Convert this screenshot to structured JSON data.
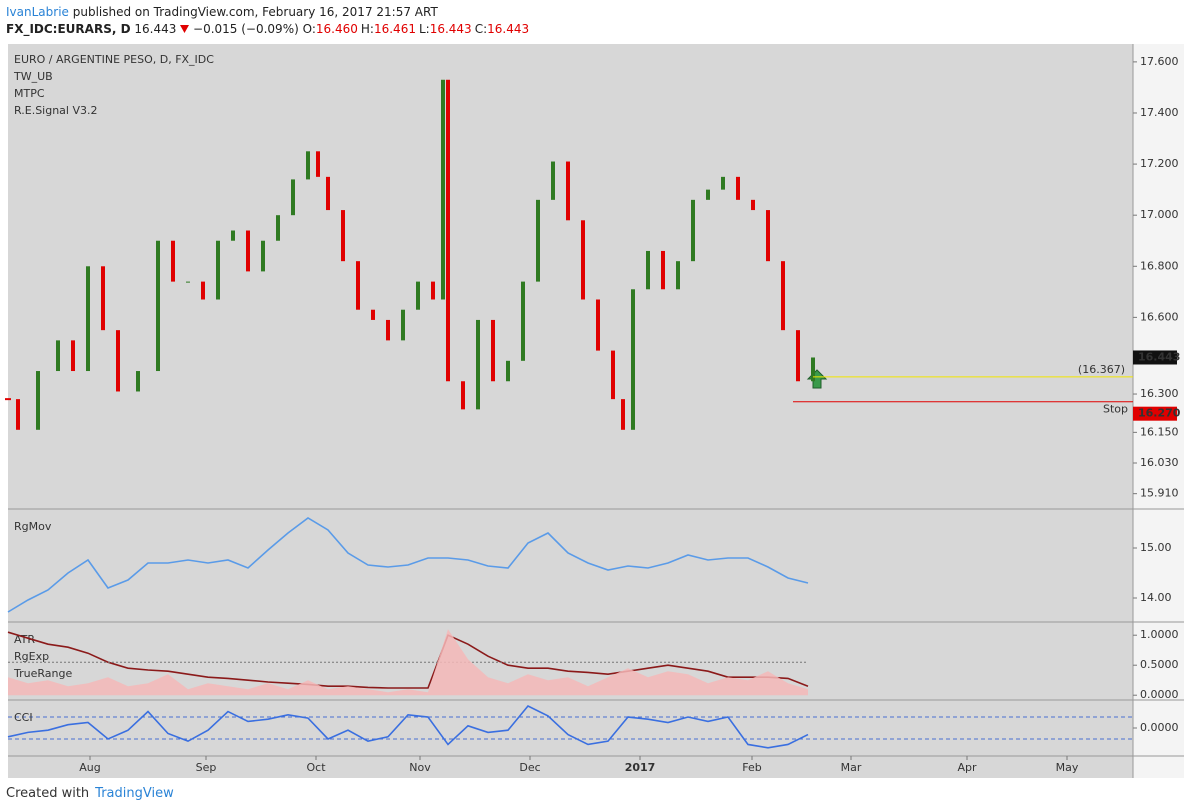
{
  "header": {
    "author": "IvanLabrie",
    "byline": "published on TradingView.com, February 16, 2017 21:57 ART"
  },
  "quote": {
    "symbol": "FX_IDC:EURARS, D",
    "price": "16.443",
    "change": "−0.015 (−0.09%)",
    "ohlc": [
      {
        "key": "O:",
        "value": "16.460"
      },
      {
        "key": "H:",
        "value": "16.461"
      },
      {
        "key": "L:",
        "value": "16.443"
      },
      {
        "key": "C:",
        "value": "16.443"
      }
    ]
  },
  "footer": {
    "created": "Created with",
    "brand": "TradingView"
  },
  "chart_data": [
    {
      "type": "candlestick",
      "title": "EURO / ARGENTINE PESO, D, FX_IDC",
      "indicators": [
        "TW_UB",
        "MTPC",
        "R.E.Signal V3.2"
      ],
      "x": [
        0,
        2,
        6,
        10,
        13,
        16,
        19,
        22,
        26,
        30,
        33,
        36,
        39,
        42,
        45,
        48,
        51,
        54,
        57,
        60,
        62,
        64,
        67,
        70,
        73,
        76,
        79,
        82,
        85,
        87,
        88,
        91,
        94,
        97,
        100,
        103,
        106,
        109,
        112,
        115,
        118,
        121,
        123,
        125,
        128,
        131,
        134,
        137,
        140,
        143,
        146,
        149,
        152,
        155,
        158,
        161
      ],
      "values": [
        16.28,
        16.16,
        16.39,
        16.51,
        16.39,
        16.8,
        16.55,
        16.31,
        16.39,
        16.9,
        16.74,
        16.74,
        16.67,
        16.9,
        16.94,
        16.78,
        16.9,
        17.0,
        17.14,
        17.25,
        17.15,
        17.02,
        16.82,
        16.63,
        16.59,
        16.51,
        16.63,
        16.74,
        16.67,
        17.53,
        16.35,
        16.24,
        16.59,
        16.35,
        16.43,
        16.74,
        17.06,
        17.21,
        16.98,
        16.67,
        16.47,
        16.28,
        16.16,
        16.71,
        16.86,
        16.71,
        16.82,
        17.06,
        17.1,
        17.15,
        17.06,
        17.02,
        16.82,
        16.55,
        16.35,
        16.443
      ],
      "up_color": "#2f7a22",
      "down_color": "#e00000",
      "xlim": [
        0,
        225
      ],
      "ylim": [
        15.85,
        17.67
      ],
      "yticks": [
        {
          "value": 17.6,
          "label": "17.600"
        },
        {
          "value": 17.4,
          "label": "17.400"
        },
        {
          "value": 17.2,
          "label": "17.200"
        },
        {
          "value": 17.0,
          "label": "17.000"
        },
        {
          "value": 16.8,
          "label": "16.800"
        },
        {
          "value": 16.6,
          "label": "16.600"
        },
        {
          "value": 16.3,
          "label": "16.300"
        },
        {
          "value": 16.15,
          "label": "16.150"
        },
        {
          "value": 16.03,
          "label": "16.030"
        },
        {
          "value": 15.91,
          "label": "15.910"
        }
      ],
      "last_price": {
        "value": 16.443,
        "label": "16.443"
      },
      "target": {
        "value": 16.367,
        "label": "(16.367)"
      },
      "stop": {
        "name": "Stop",
        "value": 16.27,
        "label": "16.270"
      }
    },
    {
      "type": "line",
      "xlim": [
        0,
        225
      ],
      "ylim": [
        13.52,
        15.78
      ],
      "x": [
        0,
        4,
        8,
        12,
        16,
        20,
        24,
        28,
        32,
        36,
        40,
        44,
        48,
        52,
        56,
        60,
        64,
        68,
        72,
        76,
        80,
        84,
        88,
        92,
        96,
        100,
        104,
        108,
        112,
        116,
        120,
        124,
        128,
        132,
        136,
        140,
        144,
        148,
        152,
        156,
        160
      ],
      "series": [
        {
          "name": "RgMov",
          "color": "#5a9be8",
          "values": [
            13.72,
            13.96,
            14.16,
            14.5,
            14.76,
            14.2,
            14.36,
            14.7,
            14.7,
            14.76,
            14.7,
            14.76,
            14.6,
            14.96,
            15.3,
            15.6,
            15.36,
            14.9,
            14.66,
            14.62,
            14.66,
            14.8,
            14.8,
            14.76,
            14.64,
            14.6,
            15.1,
            15.3,
            14.9,
            14.7,
            14.56,
            14.64,
            14.6,
            14.7,
            14.86,
            14.76,
            14.8,
            14.8,
            14.62,
            14.4,
            14.3
          ]
        }
      ],
      "yticks": [
        {
          "value": 15,
          "label": "15.00"
        },
        {
          "value": 14,
          "label": "14.00"
        }
      ]
    },
    {
      "type": "line",
      "xlim": [
        0,
        225
      ],
      "ylim": [
        -0.08,
        1.22
      ],
      "x": [
        0,
        4,
        8,
        12,
        16,
        20,
        24,
        28,
        32,
        36,
        40,
        44,
        48,
        52,
        56,
        60,
        64,
        68,
        72,
        76,
        80,
        84,
        88,
        92,
        96,
        100,
        104,
        108,
        112,
        116,
        120,
        124,
        128,
        132,
        136,
        140,
        144,
        148,
        152,
        156,
        160
      ],
      "series": [
        {
          "name": "ATR",
          "color": "#8b1a1a",
          "values": [
            1.05,
            0.95,
            0.85,
            0.8,
            0.7,
            0.55,
            0.45,
            0.42,
            0.4,
            0.35,
            0.3,
            0.28,
            0.25,
            0.22,
            0.2,
            0.18,
            0.15,
            0.15,
            0.13,
            0.12,
            0.12,
            0.12,
            1.0,
            0.85,
            0.65,
            0.5,
            0.45,
            0.45,
            0.4,
            0.38,
            0.35,
            0.4,
            0.45,
            0.5,
            0.45,
            0.4,
            0.3,
            0.3,
            0.3,
            0.28,
            0.15
          ]
        },
        {
          "name": "RgExp",
          "color": "#777777",
          "level": 0.55
        },
        {
          "name": "TrueRange",
          "color": "#f4b8b8",
          "fill": true,
          "values": [
            0.3,
            0.2,
            0.25,
            0.15,
            0.2,
            0.3,
            0.15,
            0.2,
            0.35,
            0.1,
            0.2,
            0.15,
            0.1,
            0.2,
            0.1,
            0.25,
            0.1,
            0.15,
            0.1,
            0.05,
            0.1,
            0.05,
            1.1,
            0.6,
            0.3,
            0.2,
            0.35,
            0.25,
            0.3,
            0.15,
            0.3,
            0.45,
            0.3,
            0.4,
            0.35,
            0.2,
            0.3,
            0.25,
            0.4,
            0.2,
            0.1
          ]
        }
      ],
      "yticks": [
        {
          "value": 1,
          "label": "1.0000"
        },
        {
          "value": 0.5,
          "label": "0.5000"
        },
        {
          "value": 0,
          "label": "0.0000"
        }
      ]
    },
    {
      "type": "line",
      "xlim": [
        0,
        225
      ],
      "ylim": [
        -255,
        255
      ],
      "bands": [
        100,
        -100
      ],
      "x": [
        0,
        4,
        8,
        12,
        16,
        20,
        24,
        28,
        32,
        36,
        40,
        44,
        48,
        52,
        56,
        60,
        64,
        68,
        72,
        76,
        80,
        84,
        88,
        92,
        96,
        100,
        104,
        108,
        112,
        116,
        120,
        124,
        128,
        132,
        136,
        140,
        144,
        148,
        152,
        156,
        160
      ],
      "series": [
        {
          "name": "CCI",
          "color": "#3a6fe0",
          "values": [
            -80,
            -40,
            -20,
            30,
            50,
            -100,
            -20,
            150,
            -50,
            -120,
            -20,
            150,
            60,
            80,
            120,
            90,
            -100,
            -20,
            -120,
            -80,
            120,
            100,
            -150,
            20,
            -40,
            -20,
            200,
            110,
            -60,
            -150,
            -120,
            100,
            80,
            50,
            100,
            60,
            100,
            -150,
            -180,
            -150,
            -60
          ]
        }
      ],
      "yticks": [
        {
          "value": 0,
          "label": "0.0000"
        }
      ],
      "xticks": [
        {
          "value": 16.4,
          "label": "Aug"
        },
        {
          "value": 39.6,
          "label": "Sep"
        },
        {
          "value": 61.6,
          "label": "Oct"
        },
        {
          "value": 82.4,
          "label": "Nov"
        },
        {
          "value": 104.4,
          "label": "Dec"
        },
        {
          "value": 126.4,
          "label": "2017"
        },
        {
          "value": 148.8,
          "label": "Feb"
        },
        {
          "value": 168.6,
          "label": "Mar"
        },
        {
          "value": 191.8,
          "label": "Apr"
        },
        {
          "value": 211.8,
          "label": "May"
        }
      ]
    }
  ]
}
